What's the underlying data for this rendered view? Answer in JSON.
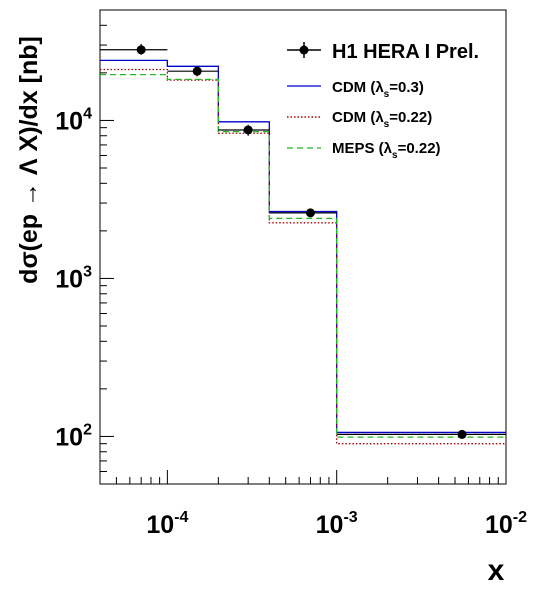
{
  "chart_data": {
    "type": "step-histogram",
    "xscale": "log",
    "yscale": "log",
    "xlim": [
      4e-05,
      0.01
    ],
    "ylim": [
      50,
      50000
    ],
    "xlabel": "x",
    "ylabel": "dσ(ep → Λ X)/dx [nb]",
    "x_tick_labels": [
      {
        "base": "10",
        "exp": "-4",
        "value": 0.0001
      },
      {
        "base": "10",
        "exp": "-3",
        "value": 0.001
      },
      {
        "base": "10",
        "exp": "-2",
        "value": 0.01
      }
    ],
    "y_tick_labels": [
      {
        "base": "10",
        "exp": "2",
        "value": 100
      },
      {
        "base": "10",
        "exp": "3",
        "value": 1000
      },
      {
        "base": "10",
        "exp": "4",
        "value": 10000
      }
    ],
    "bin_edges": [
      4e-05,
      0.0001,
      0.0002,
      0.0004,
      0.001,
      0.01
    ],
    "data_points": {
      "name": "H1 HERA I Prel.",
      "color": "#000000",
      "points": [
        {
          "x": 7e-05,
          "y": 28000,
          "x_err": [
            4e-05,
            0.0001
          ],
          "y_err": [
            26000,
            30500
          ]
        },
        {
          "x": 0.00015,
          "y": 20500,
          "x_err": [
            0.0001,
            0.0002
          ],
          "y_err": [
            19000,
            22000
          ]
        },
        {
          "x": 0.0003,
          "y": 8700,
          "x_err": [
            0.0002,
            0.0004
          ],
          "y_err": [
            8000,
            9400
          ]
        },
        {
          "x": 0.0007,
          "y": 2600,
          "x_err": [
            0.0004,
            0.001
          ],
          "y_err": [
            2450,
            2750
          ]
        },
        {
          "x": 0.0055,
          "y": 103,
          "x_err": [
            0.001,
            0.01
          ],
          "y_err": [
            98,
            108
          ]
        }
      ]
    },
    "series": [
      {
        "name_main": "CDM (λ",
        "name_sub": "s",
        "name_tail": "=0.3)",
        "color": "#0000cc",
        "style": "solid",
        "values": [
          24000,
          22000,
          9800,
          2650,
          106
        ]
      },
      {
        "name_main": "CDM (λ",
        "name_sub": "s",
        "name_tail": "=0.22)",
        "color": "#aa0000",
        "style": "dotted",
        "values": [
          21000,
          18000,
          8300,
          2250,
          90
        ]
      },
      {
        "name_main": "MEPS (λ",
        "name_sub": "s",
        "name_tail": "=0.22)",
        "color": "#22bb22",
        "style": "dashed",
        "values": [
          19500,
          18200,
          8500,
          2400,
          99
        ]
      }
    ],
    "legend_position": "top-right",
    "grid": false
  }
}
